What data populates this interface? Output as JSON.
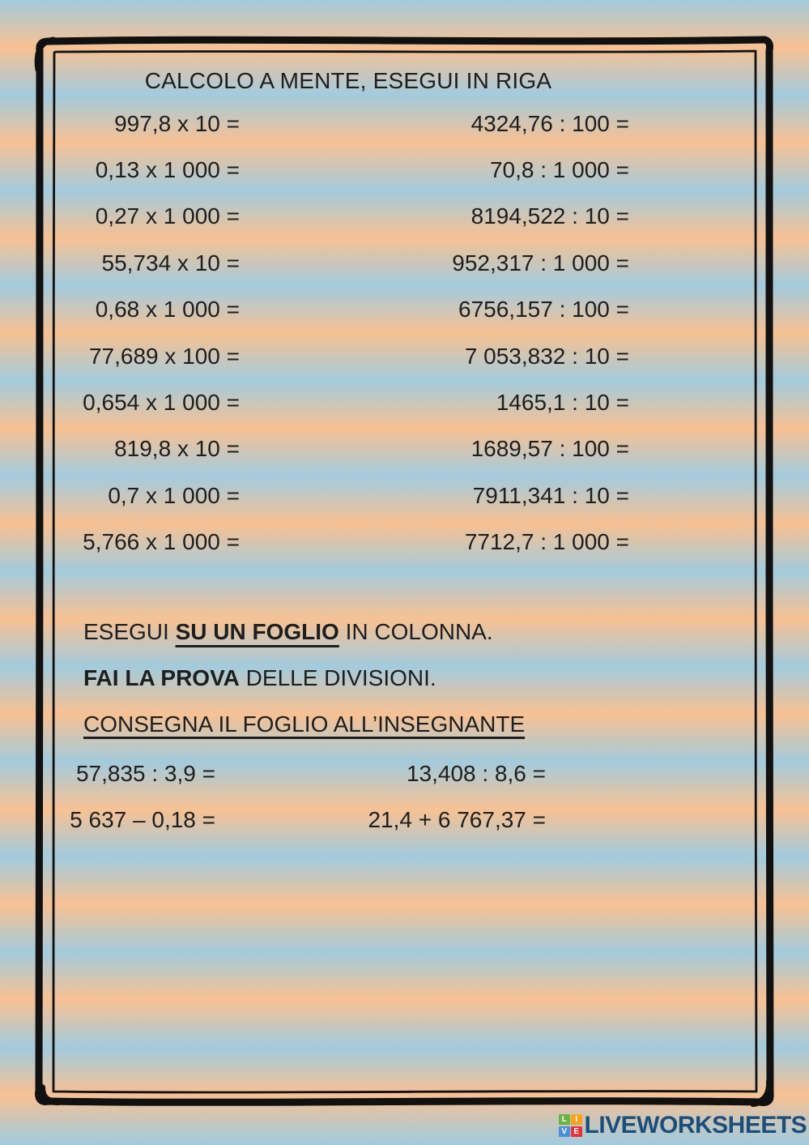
{
  "worksheet": {
    "title": "CALCOLO A MENTE, ESEGUI IN RIGA"
  },
  "mental_math": {
    "rows": [
      {
        "left": "997,8 x 10 =",
        "right": "4324,76 : 100 ="
      },
      {
        "left": "0,13 x 1 000 =",
        "right": "70,8 : 1 000 ="
      },
      {
        "left": "0,27 x 1 000 =",
        "right": "8194,522 : 10 ="
      },
      {
        "left": "55,734 x 10 =",
        "right": "952,317 : 1 000 ="
      },
      {
        "left": "0,68 x 1 000 =",
        "right": "6756,157 : 100 ="
      },
      {
        "left": "77,689 x 100 =",
        "right": "7 053,832 : 10 ="
      },
      {
        "left": "0,654 x 1 000 =",
        "right": "1465,1 : 10 ="
      },
      {
        "left": "819,8 x 10 =",
        "right": "1689,57 : 100 ="
      },
      {
        "left": "0,7 x 1 000 =",
        "right": "7911,341 : 10 ="
      },
      {
        "left": "5,766 x 1 000 =",
        "right": "7712,7 : 1 000 ="
      }
    ]
  },
  "instructions": {
    "line1": {
      "pre": "ESEGUI ",
      "emphasis": "SU UN FOGLIO",
      "post": " IN COLONNA."
    },
    "line2": {
      "emphasis": "FAI LA PROVA",
      "post": " DELLE DIVISIONI."
    },
    "line3": "CONSEGNA IL FOGLIO ALL’INSEGNANTE"
  },
  "written_exercises": {
    "rows": [
      {
        "left": "57,835 : 3,9 =",
        "right": "13,408 : 8,6 ="
      },
      {
        "left": "5 637 – 0,18 =",
        "right": "21,4 + 6 767,37 ="
      }
    ]
  },
  "footer": {
    "brand": "LIVEWORKSHEETS",
    "brand_color": "#1d4e79",
    "logo_squares": [
      {
        "letter": "L",
        "color": "#6cb33f"
      },
      {
        "letter": "I",
        "color": "#f7a41d"
      },
      {
        "letter": "V",
        "color": "#4a90d9"
      },
      {
        "letter": "E",
        "color": "#e53238"
      }
    ]
  },
  "theme": {
    "stripe_blue": "#a3cbdd",
    "stripe_peach": "#f7c193",
    "frame_color": "#111111",
    "text_color": "#1e1e1e"
  }
}
